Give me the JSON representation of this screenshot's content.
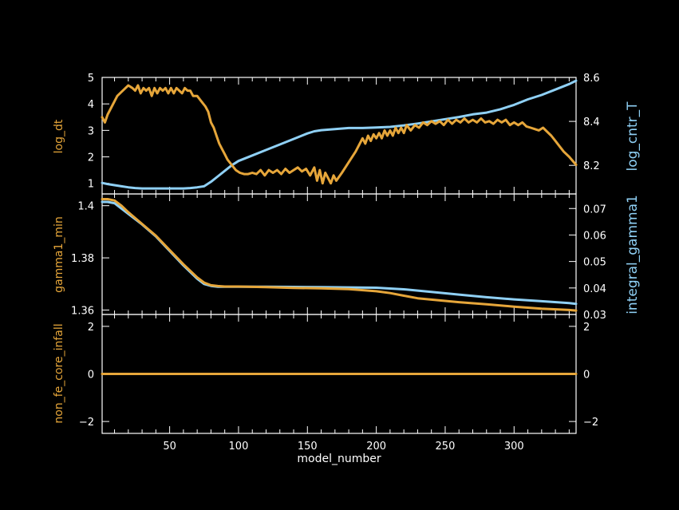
{
  "colors": {
    "background": "#000000",
    "axes": "#ffffff",
    "orange": "#e6a63a",
    "blue": "#8fd0f5"
  },
  "chart_data": [
    {
      "type": "line",
      "panel": "top",
      "xlabel": "",
      "xlim": [
        1,
        345
      ],
      "left_axis": {
        "label": "log_dt",
        "ylim": [
          0.6,
          5.0
        ],
        "ticks": [
          1,
          2,
          3,
          4,
          5
        ],
        "tick_labels": [
          "1",
          "2",
          "3",
          "4",
          "5"
        ]
      },
      "right_axis": {
        "label": "log_cntr_T",
        "ylim": [
          8.07,
          8.6
        ],
        "ticks": [
          8.2,
          8.4,
          8.6
        ],
        "tick_labels": [
          "8.2",
          "8.4",
          "8.6"
        ]
      },
      "series": [
        {
          "name": "log_dt",
          "axis": "left",
          "color": "#e6a63a",
          "x": [
            1,
            3,
            5,
            8,
            12,
            16,
            20,
            23,
            25,
            27,
            29,
            31,
            33,
            35,
            37,
            39,
            41,
            43,
            45,
            47,
            49,
            51,
            53,
            55,
            57,
            59,
            61,
            63,
            65,
            67,
            70,
            73,
            76,
            78,
            80,
            82,
            84,
            86,
            88,
            90,
            92,
            95,
            98,
            101,
            104,
            107,
            110,
            113,
            116,
            119,
            122,
            125,
            128,
            131,
            134,
            137,
            140,
            143,
            146,
            149,
            152,
            155,
            157,
            159,
            161,
            163,
            165,
            167,
            169,
            171,
            175,
            180,
            185,
            188,
            190,
            192,
            194,
            196,
            198,
            200,
            202,
            204,
            206,
            208,
            210,
            212,
            214,
            216,
            218,
            220,
            222,
            225,
            228,
            231,
            234,
            237,
            240,
            243,
            246,
            249,
            252,
            255,
            258,
            261,
            264,
            267,
            270,
            273,
            276,
            279,
            282,
            285,
            288,
            291,
            294,
            297,
            300,
            303,
            306,
            309,
            312,
            315,
            318,
            321,
            324,
            327,
            330,
            333,
            336,
            340,
            345
          ],
          "y": [
            3.5,
            3.3,
            3.6,
            3.9,
            4.3,
            4.5,
            4.7,
            4.6,
            4.5,
            4.7,
            4.4,
            4.6,
            4.5,
            4.6,
            4.3,
            4.6,
            4.4,
            4.6,
            4.5,
            4.6,
            4.4,
            4.6,
            4.4,
            4.6,
            4.5,
            4.4,
            4.6,
            4.5,
            4.5,
            4.3,
            4.3,
            4.1,
            3.9,
            3.7,
            3.3,
            3.1,
            2.8,
            2.5,
            2.3,
            2.1,
            1.9,
            1.7,
            1.5,
            1.4,
            1.35,
            1.35,
            1.4,
            1.35,
            1.5,
            1.3,
            1.5,
            1.4,
            1.5,
            1.35,
            1.55,
            1.4,
            1.5,
            1.6,
            1.45,
            1.55,
            1.3,
            1.6,
            1.1,
            1.5,
            1.0,
            1.4,
            1.2,
            1.0,
            1.3,
            1.1,
            1.4,
            1.8,
            2.2,
            2.5,
            2.7,
            2.5,
            2.8,
            2.6,
            2.85,
            2.7,
            2.9,
            2.7,
            3.0,
            2.8,
            3.0,
            2.8,
            3.1,
            2.9,
            3.1,
            2.9,
            3.2,
            3.0,
            3.2,
            3.1,
            3.3,
            3.2,
            3.35,
            3.25,
            3.35,
            3.2,
            3.4,
            3.25,
            3.4,
            3.3,
            3.45,
            3.3,
            3.4,
            3.3,
            3.45,
            3.3,
            3.35,
            3.25,
            3.4,
            3.3,
            3.4,
            3.2,
            3.3,
            3.2,
            3.3,
            3.15,
            3.1,
            3.05,
            3.0,
            3.1,
            2.95,
            2.8,
            2.6,
            2.4,
            2.2,
            2.0,
            1.7
          ]
        },
        {
          "name": "log_cntr_T",
          "axis": "right",
          "color": "#8fd0f5",
          "x": [
            1,
            5,
            10,
            15,
            20,
            25,
            30,
            40,
            50,
            60,
            65,
            70,
            75,
            80,
            85,
            90,
            95,
            100,
            110,
            120,
            130,
            140,
            150,
            155,
            160,
            170,
            180,
            190,
            200,
            210,
            220,
            230,
            240,
            250,
            260,
            270,
            280,
            290,
            300,
            310,
            320,
            330,
            340,
            345
          ],
          "y": [
            8.12,
            8.115,
            8.11,
            8.105,
            8.1,
            8.097,
            8.095,
            8.095,
            8.095,
            8.095,
            8.097,
            8.1,
            8.105,
            8.125,
            8.15,
            8.175,
            8.2,
            8.22,
            8.245,
            8.27,
            8.295,
            8.32,
            8.345,
            8.355,
            8.36,
            8.365,
            8.37,
            8.37,
            8.372,
            8.375,
            8.382,
            8.39,
            8.4,
            8.41,
            8.42,
            8.432,
            8.44,
            8.455,
            8.475,
            8.5,
            8.52,
            8.545,
            8.57,
            8.585
          ]
        }
      ]
    },
    {
      "type": "line",
      "panel": "middle",
      "xlabel": "",
      "xlim": [
        1,
        345
      ],
      "left_axis": {
        "label": "gamma1_min",
        "ylim": [
          1.3583,
          1.4045
        ],
        "ticks": [
          1.36,
          1.38,
          1.4
        ],
        "tick_labels": [
          "1.36",
          "1.38",
          "1.4"
        ]
      },
      "right_axis": {
        "label": "integral_gamma1",
        "ylim": [
          0.03,
          0.0755
        ],
        "ticks": [
          0.03,
          0.04,
          0.05,
          0.06,
          0.07
        ],
        "tick_labels": [
          "0.03",
          "0.04",
          "0.05",
          "0.06",
          "0.07"
        ]
      },
      "series": [
        {
          "name": "gamma1_min",
          "axis": "left",
          "color": "#e6a63a",
          "x": [
            1,
            5,
            10,
            15,
            20,
            30,
            40,
            50,
            60,
            70,
            75,
            80,
            85,
            90,
            100,
            120,
            140,
            160,
            180,
            200,
            210,
            220,
            230,
            240,
            260,
            280,
            300,
            320,
            340,
            345
          ],
          "y": [
            1.4025,
            1.4025,
            1.402,
            1.4,
            1.3975,
            1.393,
            1.3885,
            1.383,
            1.3775,
            1.3725,
            1.3705,
            1.3695,
            1.3692,
            1.369,
            1.369,
            1.3688,
            1.3685,
            1.3683,
            1.368,
            1.3672,
            1.3665,
            1.3655,
            1.3645,
            1.364,
            1.363,
            1.3622,
            1.3613,
            1.3605,
            1.36,
            1.3598
          ]
        },
        {
          "name": "integral_gamma1",
          "axis": "right",
          "color": "#8fd0f5",
          "x": [
            1,
            5,
            10,
            15,
            20,
            30,
            40,
            50,
            60,
            70,
            75,
            80,
            85,
            90,
            100,
            120,
            140,
            160,
            180,
            200,
            220,
            240,
            260,
            280,
            300,
            320,
            340,
            345
          ],
          "y": [
            0.0725,
            0.0725,
            0.072,
            0.07,
            0.068,
            0.064,
            0.0595,
            0.054,
            0.0485,
            0.0435,
            0.0415,
            0.0408,
            0.0405,
            0.0405,
            0.0405,
            0.0405,
            0.0404,
            0.0403,
            0.0402,
            0.0401,
            0.0395,
            0.0385,
            0.0375,
            0.0365,
            0.0357,
            0.035,
            0.0343,
            0.034
          ]
        }
      ]
    },
    {
      "type": "line",
      "panel": "bottom",
      "xlabel": "model_number",
      "xlim": [
        1,
        345
      ],
      "x_ticks": [
        50,
        100,
        150,
        200,
        250,
        300
      ],
      "x_tick_labels": [
        "50",
        "100",
        "150",
        "200",
        "250",
        "300"
      ],
      "left_axis": {
        "label": "non_fe_core_infall",
        "ylim": [
          -2.5,
          2.5
        ],
        "ticks": [
          -2,
          0,
          2
        ],
        "tick_labels": [
          "−2",
          "0",
          "2"
        ]
      },
      "right_axis": {
        "label": "",
        "ylim": [
          -2.5,
          2.5
        ],
        "ticks": [
          -2,
          0,
          2
        ],
        "tick_labels": [
          "−2",
          "0",
          "2"
        ]
      },
      "series": [
        {
          "name": "non_fe_core_infall",
          "axis": "left",
          "color": "#e6a63a",
          "x": [
            1,
            345
          ],
          "y": [
            0,
            0
          ]
        }
      ]
    }
  ]
}
